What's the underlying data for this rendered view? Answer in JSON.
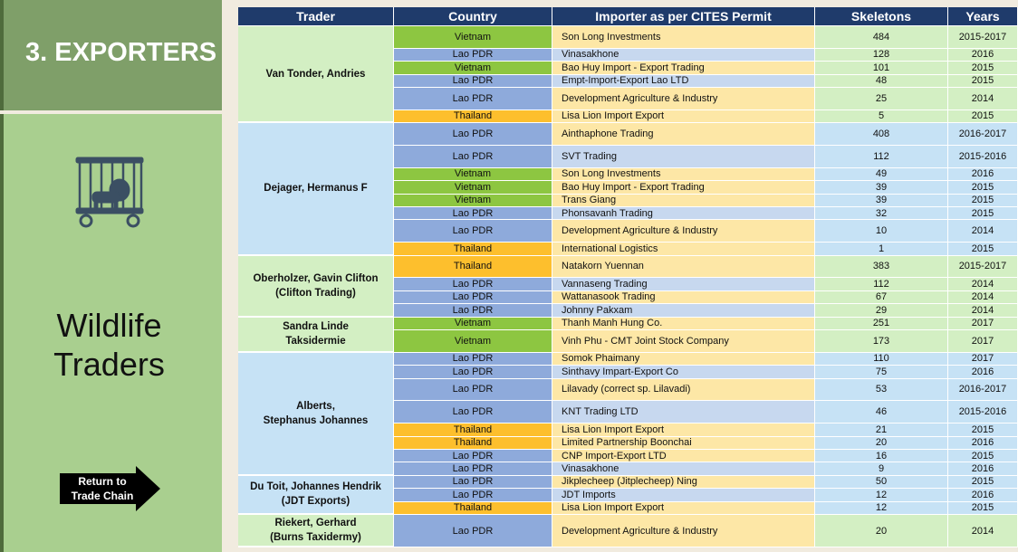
{
  "sidebar": {
    "title": "3. EXPORTERS",
    "subtitle": "Wildlife Traders",
    "button_lines": [
      "Return to",
      "Trade Chain"
    ]
  },
  "table": {
    "headers": [
      "Trader",
      "Country",
      "Importer as per CITES Permit",
      "Skeletons",
      "Years"
    ],
    "country_colors": {
      "Vietnam": "#8dc641",
      "Lao PDR": "#8eaadb",
      "Thailand": "#fdbf2d"
    },
    "groups": [
      {
        "trader": [
          "Van Tonder, Andries"
        ],
        "color": "#d3efc3",
        "rows": [
          [
            "Vietnam",
            "Son Long Investments",
            484,
            "2015-2017"
          ],
          [
            "Lao PDR",
            "Vinasakhone",
            128,
            "2016"
          ],
          [
            "Vietnam",
            "Bao Huy Import - Export Trading",
            101,
            "2015"
          ],
          [
            "Lao PDR",
            "Empt-Import-Export Lao LTD",
            48,
            "2015"
          ],
          [
            "Lao PDR",
            "Development Agriculture & Industry",
            25,
            "2014"
          ],
          [
            "Thailand",
            "Lisa Lion Import Export",
            5,
            "2015"
          ]
        ]
      },
      {
        "trader": [
          "Dejager, Hermanus F"
        ],
        "color": "#c6e2f5",
        "rows": [
          [
            "Lao PDR",
            "Ainthaphone Trading",
            408,
            "2016-2017"
          ],
          [
            "Lao PDR",
            "SVT Trading",
            112,
            "2015-2016"
          ],
          [
            "Vietnam",
            "Son Long Investments",
            49,
            "2016"
          ],
          [
            "Vietnam",
            "Bao Huy Import - Export Trading",
            39,
            "2015"
          ],
          [
            "Vietnam",
            "Trans Giang",
            39,
            "2015"
          ],
          [
            "Lao PDR",
            "Phonsavanh Trading",
            32,
            "2015"
          ],
          [
            "Lao PDR",
            "Development Agriculture & Industry",
            10,
            "2014"
          ],
          [
            "Thailand",
            "International Logistics",
            1,
            "2015"
          ]
        ]
      },
      {
        "trader": [
          "Oberholzer, Gavin Clifton",
          "(Clifton Trading)"
        ],
        "color": "#d3efc3",
        "rows": [
          [
            "Thailand",
            "Natakorn Yuennan",
            383,
            "2015-2017"
          ],
          [
            "Lao PDR",
            "Vannaseng Trading",
            112,
            "2014"
          ],
          [
            "Lao PDR",
            "Wattanasook Trading",
            67,
            "2014"
          ],
          [
            "Lao PDR",
            "Johnny Pakxam",
            29,
            "2014"
          ]
        ]
      },
      {
        "trader": [
          "Sandra Linde",
          "Taksidermie"
        ],
        "color": "#d3efc3",
        "rows": [
          [
            "Vietnam",
            "Thanh Manh Hung Co.",
            251,
            "2017"
          ],
          [
            "Vietnam",
            "Vinh Phu - CMT Joint Stock Company",
            173,
            "2017"
          ]
        ]
      },
      {
        "trader": [
          "Alberts,",
          "Stephanus Johannes"
        ],
        "color": "#c6e2f5",
        "rows": [
          [
            "Lao PDR",
            "Somok Phaimany",
            110,
            "2017"
          ],
          [
            "Lao PDR",
            "Sinthavy Impart-Export Co",
            75,
            "2016"
          ],
          [
            "Lao PDR",
            "Lilavady (correct sp. Lilavadi)",
            53,
            "2016-2017"
          ],
          [
            "Lao PDR",
            "KNT Trading LTD",
            46,
            "2015-2016"
          ],
          [
            "Thailand",
            "Lisa Lion Import Export",
            21,
            "2015"
          ],
          [
            "Thailand",
            "Limited Partnership Boonchai",
            20,
            "2016"
          ],
          [
            "Lao PDR",
            "CNP Import-Export LTD",
            16,
            "2015"
          ],
          [
            "Lao PDR",
            "Vinasakhone",
            9,
            "2016"
          ]
        ]
      },
      {
        "trader": [
          "Du Toit, Johannes Hendrik",
          "(JDT Exports)"
        ],
        "color": "#c6e2f5",
        "rows": [
          [
            "Lao PDR",
            "Jikplecheep (Jitplecheep) Ning",
            50,
            "2015"
          ],
          [
            "Lao PDR",
            "JDT Imports",
            12,
            "2016"
          ],
          [
            "Thailand",
            "Lisa Lion Import Export",
            12,
            "2015"
          ]
        ]
      },
      {
        "trader": [
          "Riekert, Gerhard",
          "(Burns Taxidermy)"
        ],
        "color": "#d3efc3",
        "rows": [
          [
            "Lao PDR",
            "Development Agriculture & Industry",
            20,
            "2014"
          ]
        ]
      }
    ]
  }
}
